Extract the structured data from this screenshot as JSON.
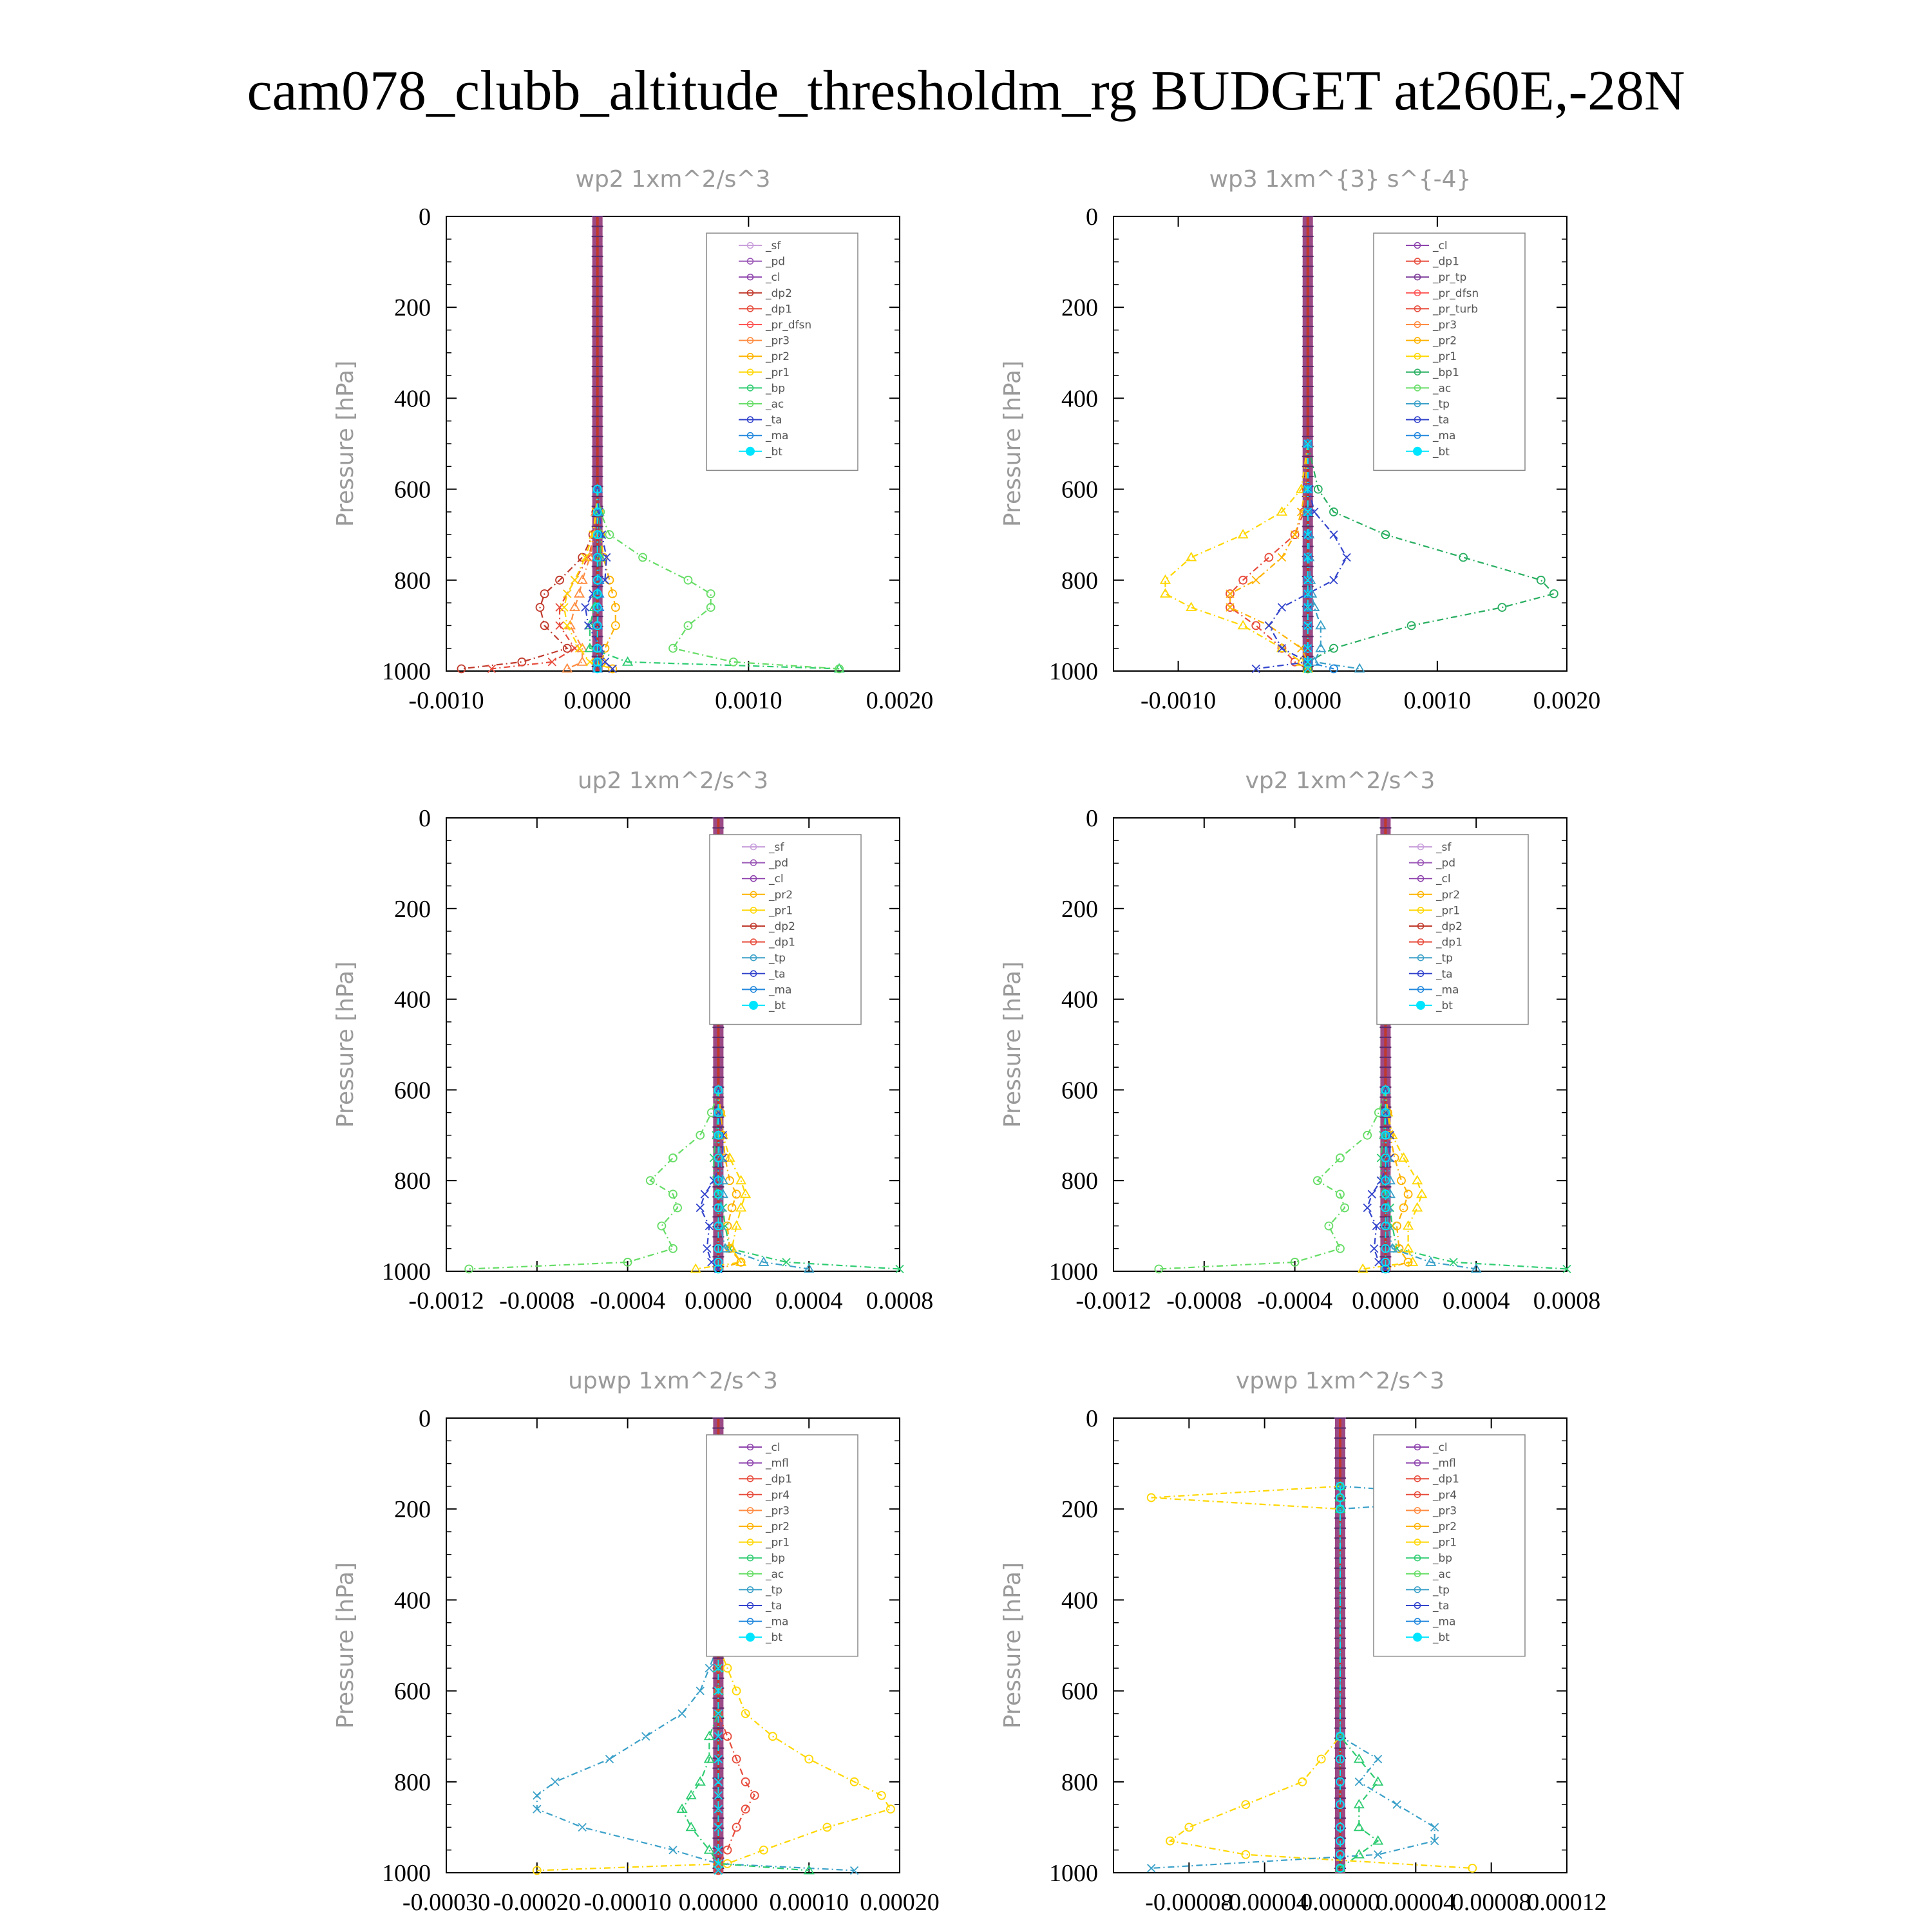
{
  "title": "cam078_clubb_altitude_thresholdm_rg  BUDGET at260E,-28N",
  "colors": {
    "sf": "#c9a0dc",
    "pd": "#9b59b6",
    "cl": "#8e44ad",
    "mfl": "#8e44ad",
    "dp2": "#c0392b",
    "dp1": "#e74c3c",
    "pr_dfsn": "#ff5555",
    "pr_tp": "#7d3c98",
    "pr_turb": "#e74c3c",
    "pr4": "#e74c3c",
    "pr3": "#ff8c42",
    "pr2": "#ffb300",
    "pr1": "#ffd700",
    "bp": "#2ecc71",
    "bp1": "#27ae60",
    "ac": "#66dd66",
    "tp": "#3aa0c8",
    "ta": "#3344cc",
    "ma": "#2288dd",
    "bt": "#00e5ff"
  },
  "chart_data": [
    {
      "type": "line",
      "title": "wp2  1xm^2/s^3",
      "ylabel": "Pressure [hPa]",
      "ylim": [
        1000,
        0
      ],
      "yticks": [
        "0",
        "200",
        "400",
        "600",
        "800",
        "1000"
      ],
      "xlim": [
        -0.001,
        0.002
      ],
      "xticks": [
        "-0.0010",
        "0.0000",
        "0.0010",
        "0.0020"
      ],
      "xtick_values": [
        -0.001,
        0.0,
        0.001,
        0.002
      ],
      "levels": [
        600,
        650,
        700,
        750,
        800,
        830,
        860,
        900,
        950,
        980,
        995
      ],
      "legend": [
        "_sf",
        "_pd",
        "_cl",
        "_dp2",
        "_dp1",
        "_pr_dfsn",
        "_pr3",
        "_pr2",
        "_pr1",
        "_bp",
        "_ac",
        "_ta",
        "_ma",
        "_bt"
      ],
      "series": [
        {
          "name": "_dp2",
          "key": "dp2",
          "values": [
            0,
            -1e-05,
            -3e-05,
            -0.0001,
            -0.00025,
            -0.00035,
            -0.00038,
            -0.00035,
            -0.0002,
            -0.0005,
            -0.0009
          ]
        },
        {
          "name": "_dp1",
          "key": "dp1",
          "values": [
            0,
            -1e-05,
            -2e-05,
            -6e-05,
            -0.00015,
            -0.0002,
            -0.00025,
            -0.00025,
            -0.00015,
            -0.0003,
            -0.0007
          ]
        },
        {
          "name": "_pr3",
          "key": "pr3",
          "values": [
            0,
            -1e-05,
            -2e-05,
            -5e-05,
            -0.0001,
            -0.00012,
            -0.00015,
            -0.00018,
            -0.0001,
            -0.0001,
            -0.0002
          ]
        },
        {
          "name": "_pr2",
          "key": "pr2",
          "values": [
            0,
            1e-05,
            2e-05,
            4e-05,
            8e-05,
            0.0001,
            0.00012,
            0.00012,
            5e-05,
            3e-05,
            0.0001
          ]
        },
        {
          "name": "_pr1",
          "key": "pr1",
          "values": [
            0,
            -1e-05,
            -3e-05,
            -8e-05,
            -0.00015,
            -0.0002,
            -0.00022,
            -0.0002,
            -0.00012,
            -5e-05,
            0.0001
          ]
        },
        {
          "name": "_bp",
          "key": "bp",
          "values": [
            0,
            1e-05,
            2e-05,
            2e-05,
            1e-05,
            0.0,
            -2e-05,
            -5e-05,
            -5e-05,
            0.0002,
            0.0016
          ]
        },
        {
          "name": "_ac",
          "key": "ac",
          "values": [
            0,
            2e-05,
            8e-05,
            0.0003,
            0.0006,
            0.00075,
            0.00075,
            0.0006,
            0.0005,
            0.0009,
            0.0016
          ]
        },
        {
          "name": "_ta",
          "key": "ta",
          "values": [
            0,
            1e-05,
            3e-05,
            6e-05,
            5e-05,
            -3e-05,
            -8e-05,
            -6e-05,
            2e-05,
            5e-05,
            0.0001
          ]
        },
        {
          "name": "_ma",
          "key": "ma",
          "values": [
            0,
            0,
            0,
            0,
            1e-05,
            1e-05,
            1e-05,
            0,
            0,
            0,
            0
          ]
        },
        {
          "name": "_bt",
          "key": "bt",
          "values": [
            0,
            0,
            0,
            0,
            0,
            0,
            0,
            0,
            0,
            0,
            0
          ]
        }
      ]
    },
    {
      "type": "line",
      "title": "wp3  1xm^{3} s^{-4}",
      "ylabel": "Pressure [hPa]",
      "ylim": [
        1000,
        0
      ],
      "yticks": [
        "0",
        "200",
        "400",
        "600",
        "800",
        "1000"
      ],
      "xlim": [
        -0.0015,
        0.002
      ],
      "xticks": [
        "-0.0010",
        "0.0000",
        "0.0010",
        "0.0020"
      ],
      "xtick_values": [
        -0.001,
        0.0,
        0.001,
        0.002
      ],
      "levels": [
        500,
        600,
        650,
        700,
        750,
        800,
        830,
        860,
        900,
        950,
        980,
        995
      ],
      "legend": [
        "_cl",
        "_dp1",
        "_pr_tp",
        "_pr_dfsn",
        "_pr_turb",
        "_pr3",
        "_pr2",
        "_pr1",
        "_bp1",
        "_ac",
        "_tp",
        "_ta",
        "_ma",
        "_bt"
      ],
      "series": [
        {
          "name": "_pr_turb",
          "key": "pr_turb",
          "values": [
            0,
            -1e-05,
            -3e-05,
            -0.0001,
            -0.0003,
            -0.0005,
            -0.0006,
            -0.0006,
            -0.0004,
            -0.0002,
            -0.0001,
            0.0
          ]
        },
        {
          "name": "_pr2",
          "key": "pr2",
          "values": [
            0,
            -2e-05,
            -5e-05,
            -0.0001,
            -0.0002,
            -0.0004,
            -0.0006,
            -0.0006,
            -0.0003,
            -5e-05,
            0.0,
            0.0
          ]
        },
        {
          "name": "_pr1",
          "key": "pr1",
          "values": [
            0,
            -5e-05,
            -0.0002,
            -0.0005,
            -0.0009,
            -0.0011,
            -0.0011,
            -0.0009,
            -0.0005,
            -0.0002,
            -5e-05,
            0.0
          ]
        },
        {
          "name": "_bp1",
          "key": "bp1",
          "values": [
            0,
            8e-05,
            0.0002,
            0.0006,
            0.0012,
            0.0018,
            0.0019,
            0.0015,
            0.0008,
            0.0002,
            0.0,
            0.0
          ]
        },
        {
          "name": "_ta",
          "key": "ta",
          "values": [
            0,
            1e-05,
            5e-05,
            0.0002,
            0.0003,
            0.0002,
            0.0,
            -0.0002,
            -0.0003,
            -0.0002,
            0.0,
            -0.0004
          ]
        },
        {
          "name": "_tp",
          "key": "tp",
          "values": [
            0,
            0,
            0,
            1e-05,
            1e-05,
            2e-05,
            3e-05,
            5e-05,
            0.0001,
            0.0001,
            5e-05,
            0.0004
          ]
        },
        {
          "name": "_ma",
          "key": "ma",
          "values": [
            0,
            0,
            0,
            0,
            0,
            0,
            0,
            0,
            0,
            0,
            0,
            0.0002
          ]
        },
        {
          "name": "_bt",
          "key": "bt",
          "values": [
            0,
            0,
            0,
            0,
            0,
            0,
            0,
            0,
            0,
            0,
            0,
            0
          ]
        }
      ]
    },
    {
      "type": "line",
      "title": "up2  1xm^2/s^3",
      "ylabel": "Pressure [hPa]",
      "ylim": [
        1000,
        0
      ],
      "yticks": [
        "0",
        "200",
        "400",
        "600",
        "800",
        "1000"
      ],
      "xlim": [
        -0.0012,
        0.0008
      ],
      "xticks": [
        "-0.0012",
        "-0.0008",
        "-0.0004",
        "0.0000",
        "0.0004",
        "0.0008"
      ],
      "xtick_values": [
        -0.0012,
        -0.0008,
        -0.0004,
        0.0,
        0.0004,
        0.0008
      ],
      "levels": [
        600,
        650,
        700,
        750,
        800,
        830,
        860,
        900,
        950,
        980,
        995
      ],
      "legend": [
        "_sf",
        "_pd",
        "_cl",
        "_pr2",
        "_pr1",
        "_dp2",
        "_dp1",
        "_tp",
        "_ta",
        "_ma",
        "_bt"
      ],
      "series": [
        {
          "name": "_dp1",
          "key": "ac",
          "values": [
            0,
            -3e-05,
            -8e-05,
            -0.0002,
            -0.0003,
            -0.0002,
            -0.00018,
            -0.00025,
            -0.0002,
            -0.0004,
            -0.0011
          ]
        },
        {
          "name": "_dp2",
          "key": "bp",
          "values": [
            0,
            0,
            -1e-05,
            -2e-05,
            -2e-05,
            0.0,
            2e-05,
            3e-05,
            5e-05,
            0.0003,
            0.0008
          ]
        },
        {
          "name": "_pr1",
          "key": "pr1",
          "values": [
            0,
            1e-05,
            2e-05,
            5e-05,
            0.0001,
            0.00012,
            0.0001,
            8e-05,
            6e-05,
            0.0001,
            -0.0001
          ]
        },
        {
          "name": "_pr2",
          "key": "pr2",
          "values": [
            0,
            1e-05,
            2e-05,
            3e-05,
            5e-05,
            8e-05,
            6e-05,
            4e-05,
            5e-05,
            0.0001,
            0.0
          ]
        },
        {
          "name": "_ta",
          "key": "ta",
          "values": [
            0,
            0,
            2e-05,
            2e-05,
            -2e-05,
            -6e-05,
            -8e-05,
            -4e-05,
            -5e-05,
            -3e-05,
            0.0
          ]
        },
        {
          "name": "_tp",
          "key": "tp",
          "values": [
            0,
            0,
            0,
            1e-05,
            2e-05,
            2e-05,
            1e-05,
            1e-05,
            3e-05,
            0.0002,
            0.0004
          ]
        },
        {
          "name": "_bt",
          "key": "bt",
          "values": [
            0,
            0,
            0,
            0,
            0,
            0,
            0,
            0,
            0,
            0,
            0
          ]
        }
      ]
    },
    {
      "type": "line",
      "title": "vp2  1xm^2/s^3",
      "ylabel": "Pressure [hPa]",
      "ylim": [
        1000,
        0
      ],
      "yticks": [
        "0",
        "200",
        "400",
        "600",
        "800",
        "1000"
      ],
      "xlim": [
        -0.0012,
        0.0008
      ],
      "xticks": [
        "-0.0012",
        "-0.0008",
        "-0.0004",
        "0.0000",
        "0.0004",
        "0.0008"
      ],
      "xtick_values": [
        -0.0012,
        -0.0008,
        -0.0004,
        0.0,
        0.0004,
        0.0008
      ],
      "levels": [
        600,
        650,
        700,
        750,
        800,
        830,
        860,
        900,
        950,
        980,
        995
      ],
      "legend": [
        "_sf",
        "_pd",
        "_cl",
        "_pr2",
        "_pr1",
        "_dp2",
        "_dp1",
        "_tp",
        "_ta",
        "_ma",
        "_bt"
      ],
      "series": [
        {
          "name": "_dp1",
          "key": "ac",
          "values": [
            0,
            -3e-05,
            -8e-05,
            -0.0002,
            -0.0003,
            -0.0002,
            -0.00018,
            -0.00025,
            -0.0002,
            -0.0004,
            -0.001
          ]
        },
        {
          "name": "_dp2",
          "key": "bp",
          "values": [
            0,
            0,
            -1e-05,
            -2e-05,
            -2e-05,
            0.0,
            2e-05,
            3e-05,
            5e-05,
            0.0003,
            0.0008
          ]
        },
        {
          "name": "_pr1",
          "key": "pr1",
          "values": [
            0,
            1e-05,
            3e-05,
            8e-05,
            0.00014,
            0.00016,
            0.00014,
            0.0001,
            0.0001,
            0.00012,
            -0.0001
          ]
        },
        {
          "name": "_pr2",
          "key": "pr2",
          "values": [
            0,
            1e-05,
            2e-05,
            4e-05,
            7e-05,
            0.0001,
            8e-05,
            5e-05,
            6e-05,
            0.0001,
            0.0
          ]
        },
        {
          "name": "_ta",
          "key": "ta",
          "values": [
            0,
            0,
            2e-05,
            2e-05,
            -2e-05,
            -6e-05,
            -8e-05,
            -4e-05,
            -5e-05,
            -3e-05,
            0.0
          ]
        },
        {
          "name": "_tp",
          "key": "tp",
          "values": [
            0,
            0,
            0,
            1e-05,
            2e-05,
            2e-05,
            1e-05,
            1e-05,
            3e-05,
            0.0002,
            0.0004
          ]
        },
        {
          "name": "_bt",
          "key": "bt",
          "values": [
            0,
            0,
            0,
            0,
            0,
            0,
            0,
            0,
            0,
            0,
            0
          ]
        }
      ]
    },
    {
      "type": "line",
      "title": "upwp  1xm^2/s^3",
      "ylabel": "Pressure [hPa]",
      "ylim": [
        1000,
        0
      ],
      "yticks": [
        "0",
        "200",
        "400",
        "600",
        "800",
        "1000"
      ],
      "xlim": [
        -0.0003,
        0.0002
      ],
      "xticks": [
        "-0.00030",
        "-0.00020",
        "-0.00010",
        "0.00000",
        "0.00010",
        "0.00020"
      ],
      "xtick_values": [
        -0.0003,
        -0.0002,
        -0.0001,
        0.0,
        0.0001,
        0.0002
      ],
      "levels": [
        500,
        550,
        600,
        650,
        700,
        750,
        800,
        830,
        860,
        900,
        950,
        980,
        995
      ],
      "legend": [
        "_cl",
        "_mfl",
        "_dp1",
        "_pr4",
        "_pr3",
        "_pr2",
        "_pr1",
        "_bp",
        "_ac",
        "_tp",
        "_ta",
        "_ma",
        "_bt"
      ],
      "series": [
        {
          "name": "_pr1",
          "key": "pr1",
          "values": [
            0,
            1e-05,
            2e-05,
            3e-05,
            6e-05,
            0.0001,
            0.00015,
            0.00018,
            0.00019,
            0.00012,
            5e-05,
            1e-05,
            -0.0002
          ]
        },
        {
          "name": "_tp",
          "key": "tp",
          "values": [
            0,
            -1e-05,
            -2e-05,
            -4e-05,
            -8e-05,
            -0.00012,
            -0.00018,
            -0.0002,
            -0.0002,
            -0.00015,
            -5e-05,
            0.0,
            0.00015
          ]
        },
        {
          "name": "_bp",
          "key": "bp",
          "values": [
            0,
            0,
            0,
            0,
            -1e-05,
            -1e-05,
            -2e-05,
            -3e-05,
            -4e-05,
            -3e-05,
            -1e-05,
            0.0,
            0.0001
          ]
        },
        {
          "name": "_pr4",
          "key": "pr4",
          "values": [
            0,
            0,
            0,
            0,
            1e-05,
            2e-05,
            3e-05,
            4e-05,
            3e-05,
            2e-05,
            1e-05,
            0,
            0
          ]
        },
        {
          "name": "_bt",
          "key": "bt",
          "values": [
            0,
            0,
            0,
            0,
            0,
            0,
            0,
            0,
            0,
            0,
            0,
            0,
            0
          ]
        }
      ]
    },
    {
      "type": "line",
      "title": "vpwp  1xm^2/s^3",
      "ylabel": "Pressure [hPa]",
      "ylim": [
        1000,
        0
      ],
      "yticks": [
        "0",
        "200",
        "400",
        "600",
        "800",
        "1000"
      ],
      "xlim": [
        -0.00012,
        0.00012
      ],
      "xticks": [
        "-0.00008",
        "-0.00004",
        "0.00000",
        "0.00004",
        "0.00008",
        "0.00012"
      ],
      "xtick_values": [
        -8e-05,
        -4e-05,
        0.0,
        4e-05,
        8e-05,
        0.00012
      ],
      "levels": [
        150,
        175,
        200,
        700,
        750,
        800,
        850,
        900,
        930,
        960,
        990
      ],
      "legend": [
        "_cl",
        "_mfl",
        "_dp1",
        "_pr4",
        "_pr3",
        "_pr2",
        "_pr1",
        "_bp",
        "_ac",
        "_tp",
        "_ta",
        "_ma",
        "_bt"
      ],
      "series": [
        {
          "name": "_pr1",
          "key": "pr1",
          "values": [
            0,
            -0.0001,
            0,
            0,
            -1e-05,
            -2e-05,
            -5e-05,
            -8e-05,
            -9e-05,
            -5e-05,
            7e-05
          ]
        },
        {
          "name": "_tp",
          "key": "tp",
          "values": [
            0,
            9e-05,
            0,
            0,
            2e-05,
            1e-05,
            3e-05,
            5e-05,
            5e-05,
            2e-05,
            -0.0001
          ]
        },
        {
          "name": "_bp",
          "key": "bp",
          "values": [
            0,
            0,
            0,
            0,
            1e-05,
            2e-05,
            1e-05,
            1e-05,
            2e-05,
            1e-05,
            0.0
          ]
        },
        {
          "name": "_bt",
          "key": "bt",
          "values": [
            0,
            0,
            0,
            0,
            0,
            0,
            0,
            0,
            0,
            0,
            0
          ]
        }
      ]
    }
  ]
}
